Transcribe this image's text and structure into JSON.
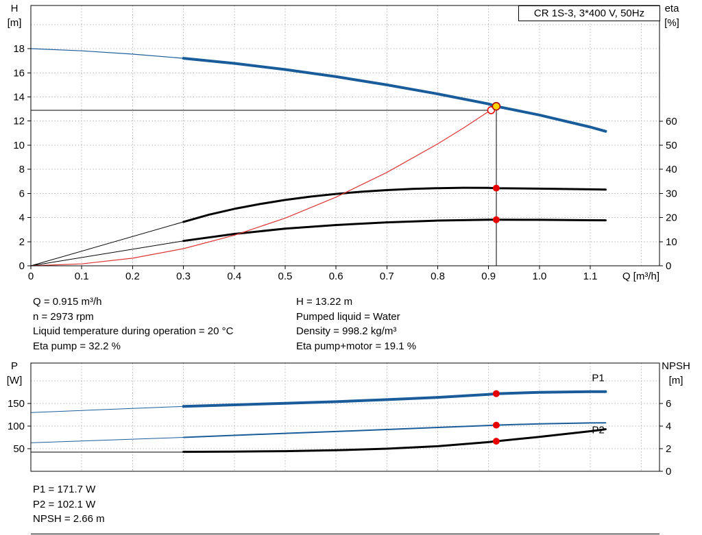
{
  "header": {
    "title": "CR 1S-3, 3*400 V, 50Hz"
  },
  "results": {
    "left": [
      "Q = 0.915 m³/h",
      "n = 2973 rpm",
      "Liquid temperature during operation = 20 °C",
      "Eta pump = 32.2 %"
    ],
    "right": [
      "H = 13.22 m",
      "Pumped liquid = Water",
      "Density = 998.2 kg/m³",
      "Eta pump+motor = 19.1 %"
    ]
  },
  "bottom_results": [
    "P1 = 171.7 W",
    "P2 = 102.1 W",
    "NPSH = 2.66 m"
  ],
  "colors": {
    "curve_blue": "#1a5c9a",
    "curve_black": "#000000",
    "system_red": "#dd3333",
    "marker_red": "#e60000",
    "marker_yellow": "#ffd500",
    "marker_ring": "#b00000",
    "grid": "#b4b4b4",
    "frame": "#000000",
    "label_blue": "#1a5c9a"
  },
  "chart_data": [
    {
      "type": "line",
      "name": "hq-eta-chart",
      "x_axis": {
        "label": "Q [m³/h]",
        "min": 0,
        "max": 1.236,
        "ticks": [
          0,
          0.1,
          0.2,
          0.3,
          0.4,
          0.5,
          0.6,
          0.7,
          0.8,
          0.9,
          1.0,
          1.1,
          1.2
        ],
        "tick_labels": [
          "0",
          "0.1",
          "0.2",
          "0.3",
          "0.4",
          "0.5",
          "0.6",
          "0.7",
          "0.8",
          "0.9",
          "1.0",
          "1.1",
          ""
        ]
      },
      "y_left": {
        "label": "H",
        "unit": "[m]",
        "min": 0,
        "max": 21.58,
        "ticks": [
          0,
          2,
          4,
          6,
          8,
          10,
          12,
          14,
          16,
          18,
          20
        ],
        "tick_labels": [
          "0",
          "2",
          "4",
          "6",
          "8",
          "10",
          "12",
          "14",
          "16",
          "18",
          ""
        ]
      },
      "y_right": {
        "label": "eta",
        "unit": "[%]",
        "min": 0,
        "max": 107.95,
        "ticks": [
          0,
          10,
          20,
          30,
          40,
          50,
          60
        ],
        "tick_labels": [
          "0",
          "10",
          "20",
          "30",
          "40",
          "50",
          "60"
        ]
      },
      "series": [
        {
          "name": "pump-curve-head",
          "axis": "left",
          "color": "#1a5c9a",
          "width": 1.2,
          "points": [
            [
              0,
              18
            ],
            [
              0.1,
              17.82
            ],
            [
              0.2,
              17.55
            ],
            [
              0.3,
              17.2
            ]
          ]
        },
        {
          "name": "pump-curve",
          "axis": "left",
          "color": "#1a5c9a",
          "width": 4,
          "points": [
            [
              0.3,
              17.2
            ],
            [
              0.4,
              16.78
            ],
            [
              0.5,
              16.27
            ],
            [
              0.6,
              15.68
            ],
            [
              0.7,
              15.0
            ],
            [
              0.8,
              14.25
            ],
            [
              0.9,
              13.42
            ],
            [
              0.915,
              13.22
            ],
            [
              1.0,
              12.5
            ],
            [
              1.1,
              11.5
            ],
            [
              1.13,
              11.15
            ]
          ]
        },
        {
          "name": "eta-pump-head",
          "axis": "right",
          "color": "#000000",
          "width": 1,
          "points": [
            [
              0,
              0
            ],
            [
              0.3,
              18.2
            ]
          ]
        },
        {
          "name": "eta-pump",
          "axis": "right",
          "color": "#000000",
          "width": 3,
          "points": [
            [
              0.3,
              18.2
            ],
            [
              0.35,
              21.2
            ],
            [
              0.4,
              23.6
            ],
            [
              0.45,
              25.6
            ],
            [
              0.5,
              27.3
            ],
            [
              0.55,
              28.7
            ],
            [
              0.6,
              29.8
            ],
            [
              0.65,
              30.7
            ],
            [
              0.7,
              31.4
            ],
            [
              0.75,
              31.9
            ],
            [
              0.8,
              32.2
            ],
            [
              0.85,
              32.35
            ],
            [
              0.9,
              32.3
            ],
            [
              0.915,
              32.2
            ],
            [
              1.0,
              32.0
            ],
            [
              1.1,
              31.7
            ],
            [
              1.13,
              31.6
            ]
          ]
        },
        {
          "name": "eta-pump-motor-head",
          "axis": "right",
          "color": "#000000",
          "width": 1,
          "points": [
            [
              0,
              0
            ],
            [
              0.3,
              10.3
            ]
          ]
        },
        {
          "name": "eta-pump-motor",
          "axis": "right",
          "color": "#000000",
          "width": 3,
          "points": [
            [
              0.3,
              10.3
            ],
            [
              0.4,
              13.2
            ],
            [
              0.5,
              15.4
            ],
            [
              0.6,
              16.9
            ],
            [
              0.7,
              18.0
            ],
            [
              0.8,
              18.75
            ],
            [
              0.9,
              19.1
            ],
            [
              0.915,
              19.1
            ],
            [
              1.0,
              19.05
            ],
            [
              1.1,
              18.9
            ],
            [
              1.13,
              18.85
            ]
          ]
        },
        {
          "name": "system-curve",
          "axis": "left",
          "color": "#dd3333",
          "width": 1.2,
          "points": [
            [
              0,
              0
            ],
            [
              0.1,
              0.16
            ],
            [
              0.2,
              0.63
            ],
            [
              0.3,
              1.42
            ],
            [
              0.4,
              2.53
            ],
            [
              0.5,
              3.95
            ],
            [
              0.6,
              5.69
            ],
            [
              0.7,
              7.74
            ],
            [
              0.8,
              10.11
            ],
            [
              0.85,
              11.41
            ],
            [
              0.9,
              12.79
            ],
            [
              0.915,
              13.22
            ]
          ]
        }
      ],
      "reference_lines": [
        {
          "type": "v",
          "axis": "left",
          "x": 0.915,
          "y_from": 0,
          "y_to": 13.22
        },
        {
          "type": "h",
          "axis": "left",
          "y": 12.9,
          "x_from": 0,
          "x_to": 0.905
        }
      ],
      "markers": [
        {
          "style": "red-dot",
          "axis": "right",
          "x": 0.915,
          "y": 32.2,
          "name": "eta-pump-duty-dot"
        },
        {
          "style": "red-dot",
          "axis": "right",
          "x": 0.915,
          "y": 19.1,
          "name": "eta-pump-motor-duty-dot"
        },
        {
          "style": "open-red",
          "axis": "left",
          "x": 0.905,
          "y": 12.9,
          "name": "requested-duty-marker"
        },
        {
          "style": "duty-yellow",
          "axis": "left",
          "x": 0.915,
          "y": 13.22,
          "name": "duty-point-marker"
        }
      ],
      "labels": []
    },
    {
      "type": "line",
      "name": "power-npsh-chart",
      "x_axis": {
        "label": "",
        "min": 0,
        "max": 1.236,
        "ticks": [
          0,
          0.1,
          0.2,
          0.3,
          0.4,
          0.5,
          0.6,
          0.7,
          0.8,
          0.9,
          1.0,
          1.1,
          1.2
        ],
        "tick_labels": []
      },
      "y_left": {
        "label": "P",
        "unit": "[W]",
        "min": 0,
        "max": 239.4,
        "ticks": [
          50,
          100,
          150,
          200
        ],
        "tick_labels": [
          "50",
          "100",
          "150",
          ""
        ]
      },
      "y_right": {
        "label": "NPSH",
        "unit": "[m]",
        "min": 0,
        "max": 9.58,
        "ticks": [
          0,
          2,
          4,
          6
        ],
        "tick_labels": [
          "0",
          "2",
          "4",
          "6"
        ]
      },
      "series": [
        {
          "name": "p1-head",
          "axis": "left",
          "color": "#1a5c9a",
          "width": 1,
          "points": [
            [
              0,
              130
            ],
            [
              0.1,
              134.5
            ],
            [
              0.2,
              139
            ],
            [
              0.3,
              143.5
            ]
          ]
        },
        {
          "name": "p1",
          "axis": "left",
          "color": "#1a5c9a",
          "width": 4,
          "points": [
            [
              0.3,
              143.5
            ],
            [
              0.4,
              147
            ],
            [
              0.5,
              150.5
            ],
            [
              0.6,
              154
            ],
            [
              0.7,
              158.5
            ],
            [
              0.8,
              163.5
            ],
            [
              0.9,
              170
            ],
            [
              0.915,
              171.7
            ],
            [
              1.0,
              174.5
            ],
            [
              1.1,
              176
            ],
            [
              1.13,
              176.2
            ]
          ]
        },
        {
          "name": "p2-head",
          "axis": "left",
          "color": "#1a5c9a",
          "width": 1,
          "points": [
            [
              0,
              63
            ],
            [
              0.1,
              67
            ],
            [
              0.2,
              71
            ],
            [
              0.3,
              75
            ]
          ]
        },
        {
          "name": "p2",
          "axis": "left",
          "color": "#1a5c9a",
          "width": 2,
          "points": [
            [
              0.3,
              75
            ],
            [
              0.4,
              79.5
            ],
            [
              0.5,
              84
            ],
            [
              0.6,
              88
            ],
            [
              0.7,
              92.5
            ],
            [
              0.8,
              97
            ],
            [
              0.9,
              101.3
            ],
            [
              0.915,
              102.1
            ],
            [
              1.0,
              105
            ],
            [
              1.1,
              107
            ],
            [
              1.13,
              107.3
            ]
          ]
        },
        {
          "name": "npsh-head",
          "axis": "right",
          "color": "#000000",
          "width": 1,
          "points": [
            [
              0,
              1.7
            ],
            [
              0.3,
              1.7
            ]
          ]
        },
        {
          "name": "npsh",
          "axis": "right",
          "color": "#000000",
          "width": 3,
          "points": [
            [
              0.3,
              1.72
            ],
            [
              0.4,
              1.74
            ],
            [
              0.5,
              1.78
            ],
            [
              0.6,
              1.86
            ],
            [
              0.7,
              2.0
            ],
            [
              0.8,
              2.22
            ],
            [
              0.9,
              2.58
            ],
            [
              0.915,
              2.66
            ],
            [
              1.0,
              3.05
            ],
            [
              1.1,
              3.55
            ],
            [
              1.13,
              3.72
            ]
          ]
        }
      ],
      "reference_lines": [],
      "markers": [
        {
          "style": "red-dot",
          "axis": "left",
          "x": 0.915,
          "y": 171.7,
          "name": "p1-duty-dot"
        },
        {
          "style": "red-dot",
          "axis": "left",
          "x": 0.915,
          "y": 102.1,
          "name": "p2-duty-dot"
        },
        {
          "style": "red-dot",
          "axis": "right",
          "x": 0.915,
          "y": 2.66,
          "name": "npsh-duty-dot"
        }
      ],
      "labels": [
        {
          "text": "P1",
          "axis": "left",
          "x": 1.103,
          "y": 207,
          "color": "#1a5c9a"
        },
        {
          "text": "P2",
          "axis": "left",
          "x": 1.103,
          "y": 92,
          "color": "#1a5c9a"
        }
      ]
    }
  ]
}
